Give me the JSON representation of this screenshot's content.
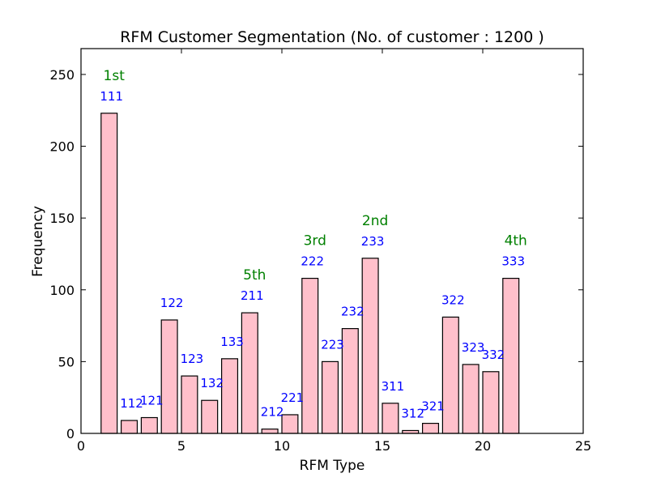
{
  "chart_data": {
    "type": "bar",
    "title": "RFM Customer Segmentation  (No. of customer : 1200 )",
    "xlabel": "RFM Type",
    "ylabel": "Frequency",
    "xlim": [
      0,
      25
    ],
    "ylim": [
      0,
      268
    ],
    "xticks": [
      0,
      5,
      10,
      15,
      20,
      25
    ],
    "yticks": [
      0,
      50,
      100,
      150,
      200,
      250
    ],
    "grid": false,
    "bar_color": "#ffc0cb",
    "label_color": "#0000ff",
    "rank_color": "#008000",
    "bars": [
      {
        "x": 1,
        "value": 223,
        "label": "111",
        "rank": "1st"
      },
      {
        "x": 2,
        "value": 9,
        "label": "112"
      },
      {
        "x": 3,
        "value": 11,
        "label": "121"
      },
      {
        "x": 4,
        "value": 79,
        "label": "122"
      },
      {
        "x": 5,
        "value": 40,
        "label": "123"
      },
      {
        "x": 6,
        "value": 23,
        "label": "132"
      },
      {
        "x": 7,
        "value": 52,
        "label": "133"
      },
      {
        "x": 8,
        "value": 84,
        "label": "211",
        "rank": "5th"
      },
      {
        "x": 9,
        "value": 3,
        "label": "212"
      },
      {
        "x": 10,
        "value": 13,
        "label": "221"
      },
      {
        "x": 11,
        "value": 108,
        "label": "222",
        "rank": "3rd"
      },
      {
        "x": 12,
        "value": 50,
        "label": "223"
      },
      {
        "x": 13,
        "value": 73,
        "label": "232"
      },
      {
        "x": 14,
        "value": 122,
        "label": "233",
        "rank": "2nd"
      },
      {
        "x": 15,
        "value": 21,
        "label": "311"
      },
      {
        "x": 16,
        "value": 2,
        "label": "312"
      },
      {
        "x": 17,
        "value": 7,
        "label": "321"
      },
      {
        "x": 18,
        "value": 81,
        "label": "322"
      },
      {
        "x": 19,
        "value": 48,
        "label": "323"
      },
      {
        "x": 20,
        "value": 43,
        "label": "332"
      },
      {
        "x": 21,
        "value": 108,
        "label": "333",
        "rank": "4th"
      }
    ]
  }
}
